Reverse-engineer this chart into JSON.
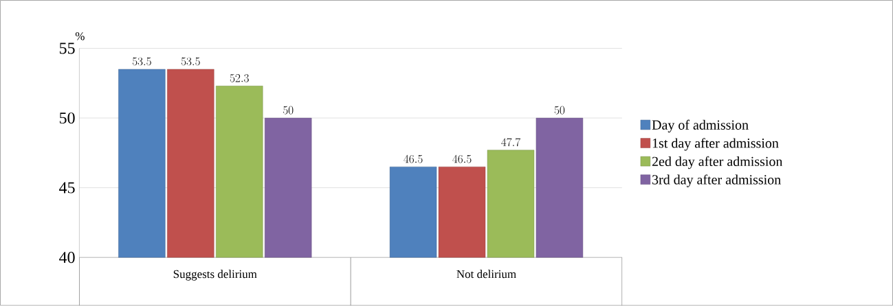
{
  "chart_data": {
    "type": "bar",
    "ylabel": "%",
    "categories": [
      "Suggests delirium",
      "Not delirium"
    ],
    "series": [
      {
        "name": "Day of admission",
        "color": "#4f81bd",
        "values": [
          53.5,
          46.5
        ]
      },
      {
        "name": "1st day after admission",
        "color": "#c0504d",
        "values": [
          53.5,
          46.5
        ]
      },
      {
        "name": "2ed day after admission",
        "color": "#9bbb59",
        "values": [
          52.3,
          47.7
        ]
      },
      {
        "name": "3rd day after admission",
        "color": "#8064a2",
        "values": [
          50,
          50
        ]
      }
    ],
    "ylim": [
      40,
      55
    ],
    "yticks": [
      40,
      45,
      50,
      55
    ],
    "grid": "y",
    "legend": "right",
    "data_labels": true
  }
}
